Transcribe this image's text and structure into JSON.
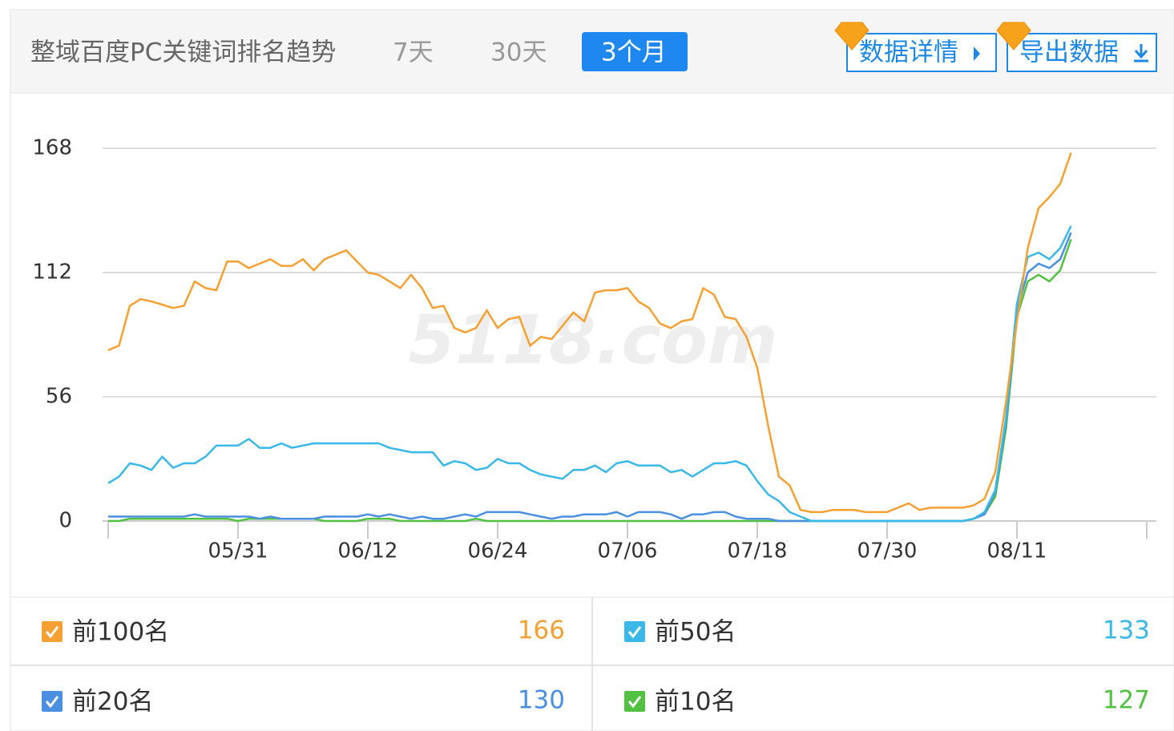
{
  "header": {
    "title": "整域百度PC关键词排名趋势",
    "tabs": [
      "7天",
      "30天",
      "3个月"
    ],
    "active_tab": 2,
    "buttons": [
      "数据详情",
      "导出数据"
    ]
  },
  "chart_data": {
    "type": "line",
    "watermark": "5118.com",
    "categories": [
      null,
      null,
      null,
      null,
      null,
      null,
      null,
      null,
      null,
      null,
      null,
      null,
      "05/31",
      null,
      null,
      null,
      null,
      null,
      null,
      null,
      null,
      null,
      null,
      null,
      "06/12",
      null,
      null,
      null,
      null,
      null,
      null,
      null,
      null,
      null,
      null,
      null,
      "06/24",
      null,
      null,
      null,
      null,
      null,
      null,
      null,
      null,
      null,
      null,
      null,
      "07/06",
      null,
      null,
      null,
      null,
      null,
      null,
      null,
      null,
      null,
      null,
      null,
      "07/18",
      null,
      null,
      null,
      null,
      null,
      null,
      null,
      null,
      null,
      null,
      null,
      "07/30",
      null,
      null,
      null,
      null,
      null,
      null,
      null,
      null,
      null,
      null,
      null,
      "08/11",
      null,
      null,
      null,
      null,
      null,
      null,
      null,
      null,
      null,
      null,
      null,
      null
    ],
    "ylim": [
      0,
      168
    ],
    "yticks": [
      0,
      56,
      112,
      168
    ],
    "grid": true,
    "series": [
      {
        "name": "前100名",
        "color": "#f5a033",
        "values": [
          77,
          79,
          97,
          100,
          99,
          97.5,
          96,
          97,
          108,
          105,
          104,
          117,
          117,
          114,
          116,
          118,
          115,
          115,
          118,
          113,
          118,
          120,
          122,
          117,
          112,
          111,
          108,
          105,
          111,
          105,
          96,
          97,
          87,
          85,
          87,
          95,
          87,
          91,
          92,
          79,
          83,
          82,
          88,
          94,
          90,
          103,
          104,
          104,
          105,
          99,
          96,
          89,
          87,
          90,
          91,
          105,
          102,
          92,
          91,
          83,
          69,
          43,
          20,
          16,
          5,
          4,
          4,
          5,
          5,
          5,
          4,
          4,
          4,
          6,
          8,
          5,
          6,
          6,
          6,
          6,
          7,
          10,
          22,
          54,
          90,
          123,
          141,
          146,
          152,
          166,
          null,
          null,
          null,
          null,
          null,
          null,
          null
        ]
      },
      {
        "name": "前50名",
        "color": "#3ab8e8",
        "values": [
          17,
          20,
          26,
          25,
          23,
          29,
          24,
          26,
          26,
          29,
          34,
          34,
          34,
          37,
          33,
          33,
          35,
          33,
          34,
          35,
          35,
          35,
          35,
          35,
          35,
          35,
          33,
          32,
          31,
          31,
          31,
          25,
          27,
          26,
          23,
          24,
          28,
          26,
          26,
          23,
          21,
          20,
          19,
          23,
          23,
          25,
          22,
          26,
          27,
          25,
          25,
          25,
          22,
          23,
          20,
          23,
          26,
          26,
          27,
          25,
          18,
          12,
          9,
          4,
          2,
          0,
          0,
          0,
          0,
          0,
          0,
          0,
          0,
          0,
          0,
          0,
          0,
          0,
          0,
          0,
          1,
          4,
          14,
          47,
          98,
          119,
          121,
          118,
          123,
          133,
          null,
          null,
          null,
          null,
          null,
          null,
          null
        ]
      },
      {
        "name": "前20名",
        "color": "#4a8fe0",
        "values": [
          2,
          2,
          2,
          2,
          2,
          2,
          2,
          2,
          3,
          2,
          2,
          2,
          2,
          2,
          1,
          2,
          1,
          1,
          1,
          1,
          2,
          2,
          2,
          2,
          3,
          2,
          3,
          2,
          1,
          2,
          1,
          1,
          2,
          3,
          2,
          4,
          4,
          4,
          4,
          3,
          2,
          1,
          2,
          2,
          3,
          3,
          3,
          4,
          2,
          4,
          4,
          4,
          3,
          1,
          3,
          3,
          4,
          4,
          2,
          1,
          1,
          1,
          0,
          0,
          0,
          0,
          0,
          0,
          0,
          0,
          0,
          0,
          0,
          0,
          0,
          0,
          0,
          0,
          0,
          0,
          1,
          3,
          13,
          45,
          95,
          112,
          116,
          114,
          118,
          130,
          null,
          null,
          null,
          null,
          null,
          null,
          null
        ]
      },
      {
        "name": "前10名",
        "color": "#52c041",
        "values": [
          0,
          0,
          1,
          1,
          1,
          1,
          1,
          1,
          1,
          1,
          1,
          1,
          0,
          1,
          1,
          1,
          1,
          1,
          1,
          1,
          0,
          0,
          0,
          0,
          1,
          1,
          1,
          0,
          0,
          0,
          0,
          0,
          0,
          0,
          1,
          0,
          0,
          0,
          0,
          0,
          0,
          0,
          0,
          0,
          0,
          0,
          0,
          0,
          0,
          0,
          0,
          0,
          0,
          0,
          0,
          0,
          0,
          0,
          0,
          0,
          0,
          0,
          0,
          0,
          0,
          0,
          0,
          0,
          0,
          0,
          0,
          0,
          0,
          0,
          0,
          0,
          0,
          0,
          0,
          0,
          1,
          3,
          11,
          42,
          92,
          108,
          111,
          108,
          113,
          127,
          null,
          null,
          null,
          null,
          null,
          null,
          null
        ]
      }
    ]
  }
}
